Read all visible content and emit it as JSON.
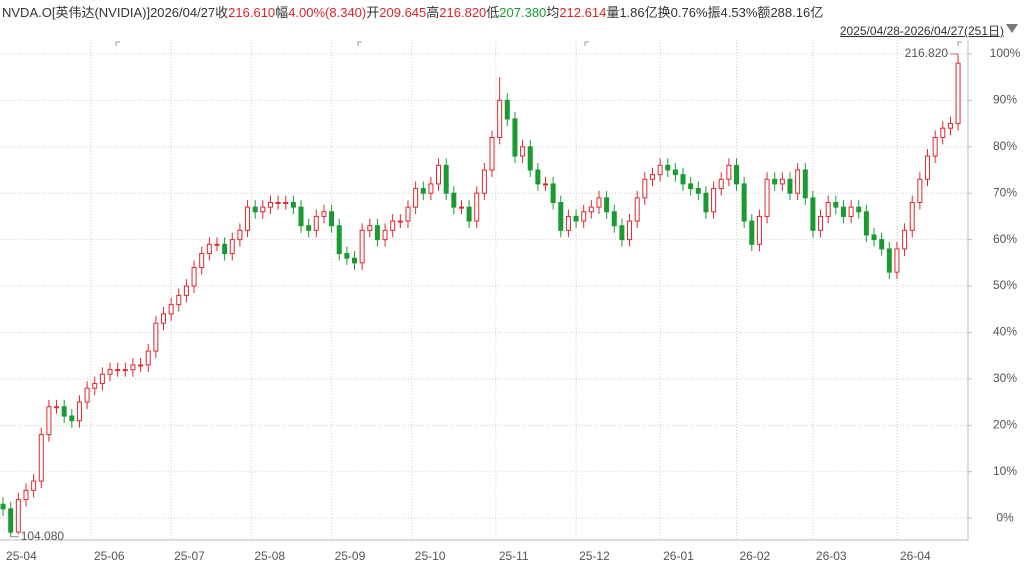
{
  "chart_data": {
    "type": "candlestick",
    "header": {
      "symbol": "NVDA.O[英伟达(NVIDIA)]",
      "date": "2026/04/27",
      "items": [
        {
          "label": "收",
          "value": "216.610",
          "tone": "up"
        },
        {
          "label": "幅",
          "value": "4.00%(8.340)",
          "tone": "up"
        },
        {
          "label": "开",
          "value": "209.645",
          "tone": "up"
        },
        {
          "label": "高",
          "value": "216.820",
          "tone": "up"
        },
        {
          "label": "低",
          "value": "207.380",
          "tone": "down"
        },
        {
          "label": "均",
          "value": "212.614",
          "tone": "up"
        },
        {
          "label": "量",
          "value": "1.86亿",
          "tone": "flat"
        },
        {
          "label": "换",
          "value": "0.76%",
          "tone": "flat"
        },
        {
          "label": "振",
          "value": "4.53%",
          "tone": "flat"
        },
        {
          "label": "额",
          "value": "288.16亿",
          "tone": "flat"
        }
      ],
      "range": "2025/04/28-2026/04/27(251日)"
    },
    "up_color": "#e0282e",
    "down_color": "#1a9a32",
    "x": [
      0,
      2,
      4,
      6,
      8,
      10,
      12,
      14,
      16,
      18,
      20,
      22,
      24,
      26,
      28,
      30,
      32,
      34,
      36,
      38,
      40,
      42,
      44,
      46,
      48,
      50,
      52,
      54,
      56,
      58,
      60,
      62,
      64,
      66,
      68,
      70,
      72,
      74,
      76,
      78,
      80,
      82,
      84,
      86,
      88,
      90,
      92,
      94,
      96,
      98,
      100,
      102,
      104,
      106,
      108,
      110,
      112,
      114,
      116,
      118,
      120,
      122,
      124,
      126,
      128,
      130,
      132,
      134,
      136,
      138,
      140,
      142,
      144,
      146,
      148,
      150,
      152,
      154,
      156,
      158,
      160,
      162,
      164,
      166,
      168,
      170,
      172,
      174,
      176,
      178,
      180,
      182,
      184,
      186,
      188,
      190,
      192,
      194,
      196,
      198,
      200,
      202,
      204,
      206,
      208,
      210,
      212,
      214,
      216,
      218,
      220,
      222,
      224,
      226,
      228,
      230,
      232,
      234,
      236,
      238,
      240,
      242,
      244,
      246,
      248,
      250
    ],
    "open": [
      3,
      2,
      -3,
      4,
      6,
      8,
      18,
      24,
      24,
      22,
      21,
      25,
      28,
      29,
      31,
      32,
      32,
      32,
      33,
      33,
      36,
      42,
      44,
      46,
      48,
      50,
      54,
      57,
      59,
      59,
      57,
      60,
      62,
      67,
      66,
      67,
      68,
      68,
      68,
      67,
      63,
      62,
      65,
      66,
      63,
      57,
      56,
      55,
      62,
      63,
      60,
      62,
      64,
      64,
      67,
      71,
      70,
      72,
      76,
      70,
      67,
      67,
      64,
      70,
      75,
      82,
      90,
      86,
      78,
      80,
      75,
      72,
      72,
      68,
      62,
      65,
      64,
      66,
      67,
      69,
      66,
      63,
      60,
      64,
      69,
      73,
      74,
      76,
      75,
      74,
      72,
      71,
      70,
      66,
      71,
      73,
      76,
      72,
      64,
      59,
      65,
      73,
      72,
      73,
      70,
      75,
      69,
      62,
      65,
      68,
      67,
      65,
      67,
      66,
      61,
      60,
      58,
      53,
      58,
      62,
      68,
      73,
      78,
      82,
      84,
      85
    ],
    "high": [
      4.5,
      3.5,
      5.5,
      7.5,
      9.5,
      19.5,
      25.5,
      25.5,
      25.5,
      23.5,
      26.5,
      29.5,
      30.5,
      32.5,
      33.5,
      33.5,
      33.5,
      34.5,
      34.5,
      37.5,
      43.5,
      45.5,
      47.5,
      49.5,
      51.5,
      55.5,
      58.5,
      60.5,
      60.5,
      60.5,
      61.5,
      63.5,
      68.5,
      68.5,
      68.5,
      69.5,
      69.5,
      69.5,
      69.5,
      68.5,
      64.5,
      66.5,
      67.5,
      67.5,
      64.5,
      58.5,
      57.5,
      63.5,
      64.5,
      64.5,
      63.5,
      65.5,
      65.5,
      68.5,
      72.5,
      72.5,
      73.5,
      77.5,
      77.5,
      71.5,
      68.5,
      68.5,
      71.5,
      76.5,
      83.5,
      95,
      91.5,
      87.5,
      81.5,
      81.5,
      76.5,
      73.5,
      73.5,
      69.5,
      66.5,
      66.5,
      67.5,
      68.5,
      70.5,
      70.5,
      67.5,
      64.5,
      65.5,
      70.5,
      74.5,
      75.5,
      77.5,
      77.5,
      76.5,
      75.5,
      73.5,
      72.5,
      71.5,
      72.5,
      74.5,
      77.5,
      77.5,
      73.5,
      65.5,
      66.5,
      74.5,
      74.5,
      74.5,
      74.5,
      76.5,
      76.5,
      70.5,
      66.5,
      69.5,
      69.5,
      68.5,
      68.5,
      68.5,
      67.5,
      62.5,
      61.5,
      59.5,
      59.5,
      63.5,
      69.5,
      74.5,
      79.5,
      83.5,
      85.5,
      86.5,
      100
    ],
    "low": [
      0.5,
      -4,
      -3.5,
      2.5,
      4.5,
      6.5,
      16.5,
      22.5,
      20.5,
      19.5,
      19.5,
      23.5,
      26.5,
      27.5,
      29.5,
      30.5,
      30.5,
      30.5,
      31.5,
      31.5,
      34.5,
      40.5,
      42.5,
      44.5,
      46.5,
      48.5,
      52.5,
      55.5,
      57.5,
      55.5,
      55.5,
      58.5,
      60.5,
      64.5,
      64.5,
      65.5,
      66.5,
      66.5,
      65.5,
      61.5,
      60.5,
      60.5,
      63.5,
      61.5,
      55.5,
      54.5,
      53.5,
      53.5,
      60.5,
      58.5,
      58.5,
      60.5,
      62.5,
      62.5,
      65.5,
      68.5,
      68.5,
      70.5,
      68.5,
      65.5,
      65.5,
      62.5,
      62.5,
      68.5,
      73.5,
      80.5,
      84.5,
      76.5,
      76.5,
      73.5,
      70.5,
      70.5,
      66.5,
      60.5,
      60.5,
      62.5,
      62.5,
      64.5,
      65.5,
      64.5,
      61.5,
      58.5,
      58.5,
      62.5,
      67.5,
      71.5,
      72.5,
      73.5,
      72.5,
      70.5,
      69.5,
      68.5,
      64.5,
      64.5,
      69.5,
      71.5,
      70.5,
      62.5,
      57.5,
      57.5,
      63.5,
      70.5,
      70.5,
      68.5,
      68.5,
      67.5,
      60.5,
      60.5,
      63.5,
      65.5,
      63.5,
      63.5,
      64.5,
      59.5,
      58.5,
      56.5,
      51.5,
      51.5,
      56.5,
      60.5,
      66.5,
      71.5,
      76.5,
      80.5,
      82.5,
      83.5
    ],
    "close": [
      2,
      -3,
      4,
      6,
      8,
      18,
      24,
      24,
      22,
      21,
      25,
      28,
      29,
      31,
      32,
      32,
      32,
      33,
      33,
      36,
      42,
      44,
      46,
      48,
      50,
      54,
      57,
      59,
      59,
      57,
      60,
      62,
      67,
      66,
      67,
      68,
      68,
      68,
      67,
      63,
      62,
      65,
      66,
      63,
      57,
      56,
      55,
      62,
      63,
      60,
      62,
      64,
      64,
      67,
      71,
      70,
      72,
      76,
      70,
      67,
      67,
      64,
      70,
      75,
      82,
      90,
      86,
      78,
      80,
      75,
      72,
      72,
      68,
      62,
      65,
      64,
      66,
      67,
      69,
      66,
      63,
      60,
      64,
      69,
      73,
      74,
      76,
      75,
      74,
      72,
      71,
      70,
      66,
      71,
      73,
      76,
      72,
      64,
      59,
      65,
      73,
      72,
      73,
      70,
      75,
      69,
      62,
      65,
      68,
      67,
      65,
      67,
      66,
      61,
      60,
      58,
      53,
      58,
      62,
      68,
      73,
      78,
      82,
      84,
      85,
      98
    ],
    "xlim": [
      -0.8,
      252.6
    ],
    "xticks": [
      {
        "value": 0,
        "label": "25-04"
      },
      {
        "value": 23,
        "label": "25-06"
      },
      {
        "value": 44,
        "label": "25-07"
      },
      {
        "value": 65,
        "label": "25-08"
      },
      {
        "value": 86,
        "label": "25-09"
      },
      {
        "value": 107,
        "label": "25-10"
      },
      {
        "value": 129,
        "label": "25-11"
      },
      {
        "value": 150,
        "label": "25-12"
      },
      {
        "value": 172,
        "label": "26-01"
      },
      {
        "value": 192,
        "label": "26-02"
      },
      {
        "value": 212,
        "label": "26-03"
      },
      {
        "value": 234,
        "label": "26-04"
      }
    ],
    "ylim": [
      -4.7,
      103
    ],
    "yticks": [
      {
        "value": 0,
        "label": "0%"
      },
      {
        "value": 10,
        "label": "10%"
      },
      {
        "value": 20,
        "label": "20%"
      },
      {
        "value": 30,
        "label": "30%"
      },
      {
        "value": 40,
        "label": "40%"
      },
      {
        "value": 50,
        "label": "50%"
      },
      {
        "value": 60,
        "label": "60%"
      },
      {
        "value": 70,
        "label": "70%"
      },
      {
        "value": 80,
        "label": "80%"
      },
      {
        "value": 90,
        "label": "90%"
      },
      {
        "value": 100,
        "label": "100%"
      }
    ],
    "grid": true,
    "annotations": [
      {
        "text": "216.820",
        "x": 250,
        "y": 100,
        "tone": "up"
      },
      {
        "text": "104.080",
        "x": 2,
        "y": -4,
        "tone": "down"
      }
    ]
  }
}
